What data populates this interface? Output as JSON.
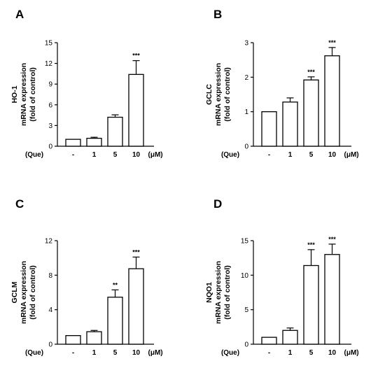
{
  "figure": {
    "x_prefix": "(Que)",
    "x_unit": "(μM)"
  },
  "chart_data": [
    {
      "type": "bar",
      "panel": "A",
      "categories": [
        "-",
        "1",
        "5",
        "10"
      ],
      "values": [
        1.0,
        1.15,
        4.2,
        10.4
      ],
      "errors": [
        0.0,
        0.15,
        0.35,
        2.0
      ],
      "significance": [
        "",
        "",
        "",
        "***"
      ],
      "ylabel_lines": [
        "HO-1",
        "mRNA expression",
        "(fold of control)"
      ],
      "ylim": [
        0,
        15
      ],
      "yticks": [
        0,
        3,
        6,
        9,
        12,
        15
      ],
      "grid": false
    },
    {
      "type": "bar",
      "panel": "B",
      "categories": [
        "-",
        "1",
        "5",
        "10"
      ],
      "values": [
        1.0,
        1.28,
        1.92,
        2.62
      ],
      "errors": [
        0.0,
        0.12,
        0.09,
        0.24
      ],
      "significance": [
        "",
        "",
        "***",
        "***"
      ],
      "ylabel_lines": [
        "GCLC",
        "mRNA expression",
        "(fold of control)"
      ],
      "ylim": [
        0,
        3
      ],
      "yticks": [
        0,
        1,
        2,
        3
      ],
      "grid": false
    },
    {
      "type": "bar",
      "panel": "C",
      "categories": [
        "-",
        "1",
        "5",
        "10"
      ],
      "values": [
        1.0,
        1.45,
        5.45,
        8.75
      ],
      "errors": [
        0.0,
        0.15,
        0.85,
        1.35
      ],
      "significance": [
        "",
        "",
        "**",
        "***"
      ],
      "ylabel_lines": [
        "GCLM",
        "mRNA expression",
        "(fold of control)"
      ],
      "ylim": [
        0,
        12
      ],
      "yticks": [
        0,
        4,
        8,
        12
      ],
      "grid": false
    },
    {
      "type": "bar",
      "panel": "D",
      "categories": [
        "-",
        "1",
        "5",
        "10"
      ],
      "values": [
        1.0,
        2.0,
        11.4,
        13.0
      ],
      "errors": [
        0.0,
        0.35,
        2.3,
        1.5
      ],
      "significance": [
        "",
        "",
        "***",
        "***"
      ],
      "ylabel_lines": [
        "NQO1",
        "mRNA expression",
        "(fold of control)"
      ],
      "ylim": [
        0,
        15
      ],
      "yticks": [
        0,
        5,
        10,
        15
      ],
      "grid": false
    }
  ]
}
